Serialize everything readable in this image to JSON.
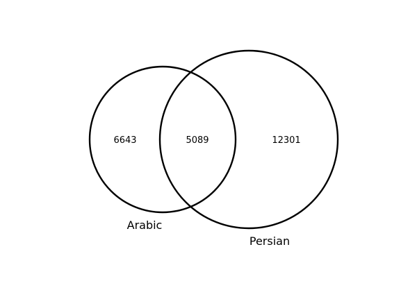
{
  "venn": {
    "sets": [
      {
        "label": "Arabic"
      },
      {
        "label": "Persian"
      }
    ],
    "counts": {
      "only_left": "6643",
      "intersection": "5089",
      "only_right": "12301"
    }
  },
  "style": {
    "stroke_color": "#000000",
    "background": "#ffffff"
  }
}
